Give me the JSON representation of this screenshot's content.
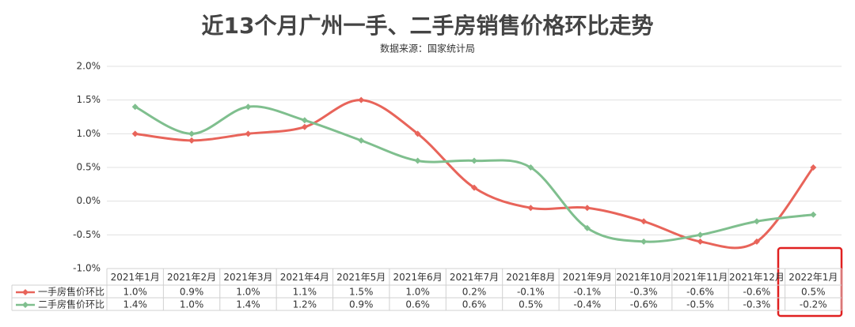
{
  "chart_data": {
    "type": "line",
    "title": "近13个月广州一手、二手房销售价格环比走势",
    "subtitle": "数据来源：国家统计局",
    "categories": [
      "2021年1月",
      "2021年2月",
      "2021年3月",
      "2021年4月",
      "2021年5月",
      "2021年6月",
      "2021年7月",
      "2021年8月",
      "2021年9月",
      "2021年10月",
      "2021年11月",
      "2021年12月",
      "2022年1月"
    ],
    "series": [
      {
        "name": "一手房售价环比",
        "color": "#e8645a",
        "values": [
          1.0,
          0.9,
          1.0,
          1.1,
          1.5,
          1.0,
          0.2,
          -0.1,
          -0.1,
          -0.3,
          -0.6,
          -0.6,
          0.5
        ],
        "value_labels": [
          "1.0%",
          "0.9%",
          "1.0%",
          "1.1%",
          "1.5%",
          "1.0%",
          "0.2%",
          "-0.1%",
          "-0.1%",
          "-0.3%",
          "-0.6%",
          "-0.6%",
          "0.5%"
        ]
      },
      {
        "name": "二手房售价环比",
        "color": "#7fbf8e",
        "values": [
          1.4,
          1.0,
          1.4,
          1.2,
          0.9,
          0.6,
          0.6,
          0.5,
          -0.4,
          -0.6,
          -0.5,
          -0.3,
          -0.2
        ],
        "value_labels": [
          "1.4%",
          "1.0%",
          "1.4%",
          "1.2%",
          "0.9%",
          "0.6%",
          "0.6%",
          "0.5%",
          "-0.4%",
          "-0.6%",
          "-0.5%",
          "-0.3%",
          "-0.2%"
        ]
      }
    ],
    "ylim": [
      -1.0,
      2.0
    ],
    "yticks": [
      {
        "value": -1.0,
        "label": "-1.0%"
      },
      {
        "value": -0.5,
        "label": "-0.5%"
      },
      {
        "value": 0.0,
        "label": "0.0%"
      },
      {
        "value": 0.5,
        "label": "0.5%"
      },
      {
        "value": 1.0,
        "label": "1.0%"
      },
      {
        "value": 1.5,
        "label": "1.5%"
      },
      {
        "value": 2.0,
        "label": "2.0%"
      }
    ],
    "grid": true
  }
}
